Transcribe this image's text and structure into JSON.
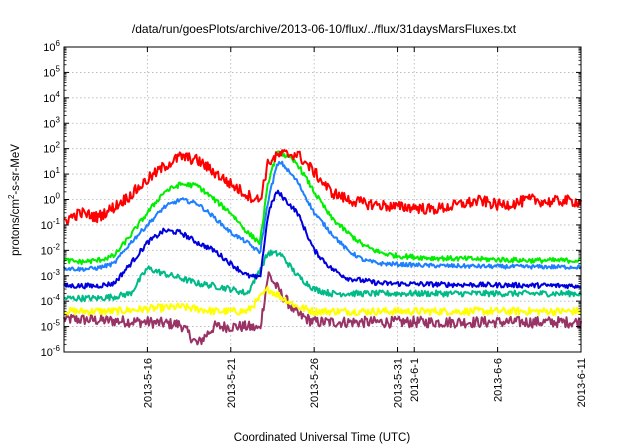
{
  "chart_data": {
    "type": "line",
    "title": "/data/run/goesPlots/archive/2013-06-10/flux/../flux/31daysMarsFluxes.txt",
    "xlabel": "Coordinated Universal Time (UTC)",
    "ylabel": {
      "main": "protons/cm",
      "sup": "2",
      "rest": "-s-sr-MeV"
    },
    "y_scale": "log",
    "ylim": [
      1e-06,
      1000000.0
    ],
    "y_ticks": [
      {
        "value": 1e-06,
        "base": "10",
        "exp": "-6"
      },
      {
        "value": 1e-05,
        "base": "10",
        "exp": "-5"
      },
      {
        "value": 0.0001,
        "base": "10",
        "exp": "-4"
      },
      {
        "value": 0.001,
        "base": "10",
        "exp": "-3"
      },
      {
        "value": 0.01,
        "base": "10",
        "exp": "-2"
      },
      {
        "value": 0.1,
        "base": "10",
        "exp": "-1"
      },
      {
        "value": 1,
        "base": "10",
        "exp": "0"
      },
      {
        "value": 10,
        "base": "10",
        "exp": "1"
      },
      {
        "value": 100,
        "base": "10",
        "exp": "2"
      },
      {
        "value": 1000,
        "base": "10",
        "exp": "3"
      },
      {
        "value": 10000,
        "base": "10",
        "exp": "4"
      },
      {
        "value": 100000,
        "base": "10",
        "exp": "5"
      },
      {
        "value": 1000000,
        "base": "10",
        "exp": "6"
      }
    ],
    "xlim": [
      "2013-05-11",
      "2013-06-11"
    ],
    "x_ticks": [
      "2013-5-16",
      "2013-5-21",
      "2013-5-26",
      "2013-5-31",
      "2013-6-1",
      "2013-6-6",
      "2013-6-11"
    ],
    "grid": true,
    "legend": "none",
    "series": [
      {
        "color": "#ff0000",
        "noise": 0.22,
        "points": [
          [
            "2013-05-11",
            0.15
          ],
          [
            "2013-05-12",
            0.3
          ],
          [
            "2013-05-13",
            0.2
          ],
          [
            "2013-05-14",
            0.5
          ],
          [
            "2013-05-15",
            1.5
          ],
          [
            "2013-05-16",
            6
          ],
          [
            "2013-05-17",
            20
          ],
          [
            "2013-05-18",
            50
          ],
          [
            "2013-05-19",
            35
          ],
          [
            "2013-05-20",
            12
          ],
          [
            "2013-05-21",
            4
          ],
          [
            "2013-05-22",
            1.5
          ],
          [
            "2013-05-22 18:00",
            0.9
          ],
          [
            "2013-05-23 06:00",
            30
          ],
          [
            "2013-05-24",
            60
          ],
          [
            "2013-05-25",
            60
          ],
          [
            "2013-05-26",
            12
          ],
          [
            "2013-05-27",
            2
          ],
          [
            "2013-05-28",
            1
          ],
          [
            "2013-05-29",
            0.7
          ],
          [
            "2013-05-30",
            0.6
          ],
          [
            "2013-05-31",
            0.5
          ],
          [
            "2013-06-01",
            0.5
          ],
          [
            "2013-06-02",
            0.4
          ],
          [
            "2013-06-03",
            0.5
          ],
          [
            "2013-06-04",
            0.7
          ],
          [
            "2013-06-05",
            0.9
          ],
          [
            "2013-06-06",
            0.6
          ],
          [
            "2013-06-07",
            0.7
          ],
          [
            "2013-06-08",
            1
          ],
          [
            "2013-06-09",
            0.8
          ],
          [
            "2013-06-10",
            0.9
          ],
          [
            "2013-06-11",
            0.8
          ]
        ]
      },
      {
        "color": "#00ee00",
        "noise": 0.1,
        "points": [
          [
            "2013-05-11",
            0.004
          ],
          [
            "2013-05-12",
            0.0035
          ],
          [
            "2013-05-13",
            0.004
          ],
          [
            "2013-05-14",
            0.006
          ],
          [
            "2013-05-15",
            0.04
          ],
          [
            "2013-05-16",
            0.3
          ],
          [
            "2013-05-17",
            2
          ],
          [
            "2013-05-18",
            4
          ],
          [
            "2013-05-19",
            3.5
          ],
          [
            "2013-05-20",
            1
          ],
          [
            "2013-05-21",
            0.3
          ],
          [
            "2013-05-22",
            0.05
          ],
          [
            "2013-05-22 18:00",
            0.02
          ],
          [
            "2013-05-23 06:00",
            5
          ],
          [
            "2013-05-23 18:00",
            60
          ],
          [
            "2013-05-24",
            70
          ],
          [
            "2013-05-25",
            25
          ],
          [
            "2013-05-26",
            2
          ],
          [
            "2013-05-27",
            0.2
          ],
          [
            "2013-05-28",
            0.05
          ],
          [
            "2013-05-29",
            0.015
          ],
          [
            "2013-05-30",
            0.008
          ],
          [
            "2013-05-31",
            0.006
          ],
          [
            "2013-06-02",
            0.005
          ],
          [
            "2013-06-05",
            0.0045
          ],
          [
            "2013-06-08",
            0.004
          ],
          [
            "2013-06-11",
            0.004
          ]
        ]
      },
      {
        "color": "#1e7fff",
        "noise": 0.08,
        "points": [
          [
            "2013-05-11",
            0.002
          ],
          [
            "2013-05-12",
            0.0018
          ],
          [
            "2013-05-13",
            0.002
          ],
          [
            "2013-05-14",
            0.003
          ],
          [
            "2013-05-15",
            0.02
          ],
          [
            "2013-05-16",
            0.1
          ],
          [
            "2013-05-17",
            0.5
          ],
          [
            "2013-05-18",
            1
          ],
          [
            "2013-05-19",
            0.7
          ],
          [
            "2013-05-20",
            0.2
          ],
          [
            "2013-05-21",
            0.05
          ],
          [
            "2013-05-22",
            0.02
          ],
          [
            "2013-05-22 18:00",
            0.008
          ],
          [
            "2013-05-23 06:00",
            1
          ],
          [
            "2013-05-23 18:00",
            20
          ],
          [
            "2013-05-24",
            30
          ],
          [
            "2013-05-25",
            5
          ],
          [
            "2013-05-26",
            0.3
          ],
          [
            "2013-05-27",
            0.05
          ],
          [
            "2013-05-28",
            0.01
          ],
          [
            "2013-05-29",
            0.004
          ],
          [
            "2013-05-30",
            0.003
          ],
          [
            "2013-06-02",
            0.0025
          ],
          [
            "2013-06-06",
            0.0023
          ],
          [
            "2013-06-11",
            0.0022
          ]
        ]
      },
      {
        "color": "#0000dd",
        "noise": 0.1,
        "points": [
          [
            "2013-05-11",
            0.0004
          ],
          [
            "2013-05-12",
            0.0004
          ],
          [
            "2013-05-13",
            0.0004
          ],
          [
            "2013-05-14",
            0.0005
          ],
          [
            "2013-05-15",
            0.003
          ],
          [
            "2013-05-16",
            0.02
          ],
          [
            "2013-05-17",
            0.06
          ],
          [
            "2013-05-18",
            0.05
          ],
          [
            "2013-05-19",
            0.02
          ],
          [
            "2013-05-20",
            0.01
          ],
          [
            "2013-05-21",
            0.003
          ],
          [
            "2013-05-22",
            0.001
          ],
          [
            "2013-05-22 18:00",
            0.0008
          ],
          [
            "2013-05-23 06:00",
            0.3
          ],
          [
            "2013-05-23 18:00",
            2
          ],
          [
            "2013-05-24",
            1.5
          ],
          [
            "2013-05-25",
            0.3
          ],
          [
            "2013-05-26",
            0.01
          ],
          [
            "2013-05-27",
            0.002
          ],
          [
            "2013-05-28",
            0.0008
          ],
          [
            "2013-05-30",
            0.0005
          ],
          [
            "2013-06-03",
            0.00045
          ],
          [
            "2013-06-11",
            0.0004
          ]
        ]
      },
      {
        "color": "#00bb88",
        "noise": 0.12,
        "points": [
          [
            "2013-05-11",
            0.00013
          ],
          [
            "2013-05-13",
            0.00013
          ],
          [
            "2013-05-14",
            0.00015
          ],
          [
            "2013-05-15",
            0.0002
          ],
          [
            "2013-05-16",
            0.002
          ],
          [
            "2013-05-17",
            0.0012
          ],
          [
            "2013-05-18",
            0.0008
          ],
          [
            "2013-05-19",
            0.0005
          ],
          [
            "2013-05-20",
            0.0004
          ],
          [
            "2013-05-21",
            0.0003
          ],
          [
            "2013-05-22",
            0.0002
          ],
          [
            "2013-05-23 06:00",
            0.008
          ],
          [
            "2013-05-24",
            0.007
          ],
          [
            "2013-05-25",
            0.001
          ],
          [
            "2013-05-26",
            0.0003
          ],
          [
            "2013-05-27",
            0.0002
          ],
          [
            "2013-06-02",
            0.0002
          ],
          [
            "2013-06-11",
            0.0002
          ]
        ]
      },
      {
        "color": "#ffff00",
        "noise": 0.15,
        "points": [
          [
            "2013-05-11",
            4e-05
          ],
          [
            "2013-05-14",
            4e-05
          ],
          [
            "2013-05-16",
            5e-05
          ],
          [
            "2013-05-18",
            6e-05
          ],
          [
            "2013-05-20",
            4e-05
          ],
          [
            "2013-05-22",
            4e-05
          ],
          [
            "2013-05-23 06:00",
            0.0003
          ],
          [
            "2013-05-24",
            0.00015
          ],
          [
            "2013-05-25",
            6e-05
          ],
          [
            "2013-05-26",
            4e-05
          ],
          [
            "2013-06-11",
            4e-05
          ]
        ]
      },
      {
        "color": "#993366",
        "noise": 0.22,
        "points": [
          [
            "2013-05-11",
            2e-05
          ],
          [
            "2013-05-16",
            1.5e-05
          ],
          [
            "2013-05-18",
            1.2e-05
          ],
          [
            "2013-05-19",
            2e-06
          ],
          [
            "2013-05-20",
            1e-05
          ],
          [
            "2013-05-22",
            1e-05
          ],
          [
            "2013-05-22 18:00",
            8e-06
          ],
          [
            "2013-05-23 06:00",
            0.0012
          ],
          [
            "2013-05-24",
            0.0002
          ],
          [
            "2013-05-25",
            3e-05
          ],
          [
            "2013-05-26",
            1.5e-05
          ],
          [
            "2013-06-11",
            1.5e-05
          ]
        ]
      }
    ]
  }
}
